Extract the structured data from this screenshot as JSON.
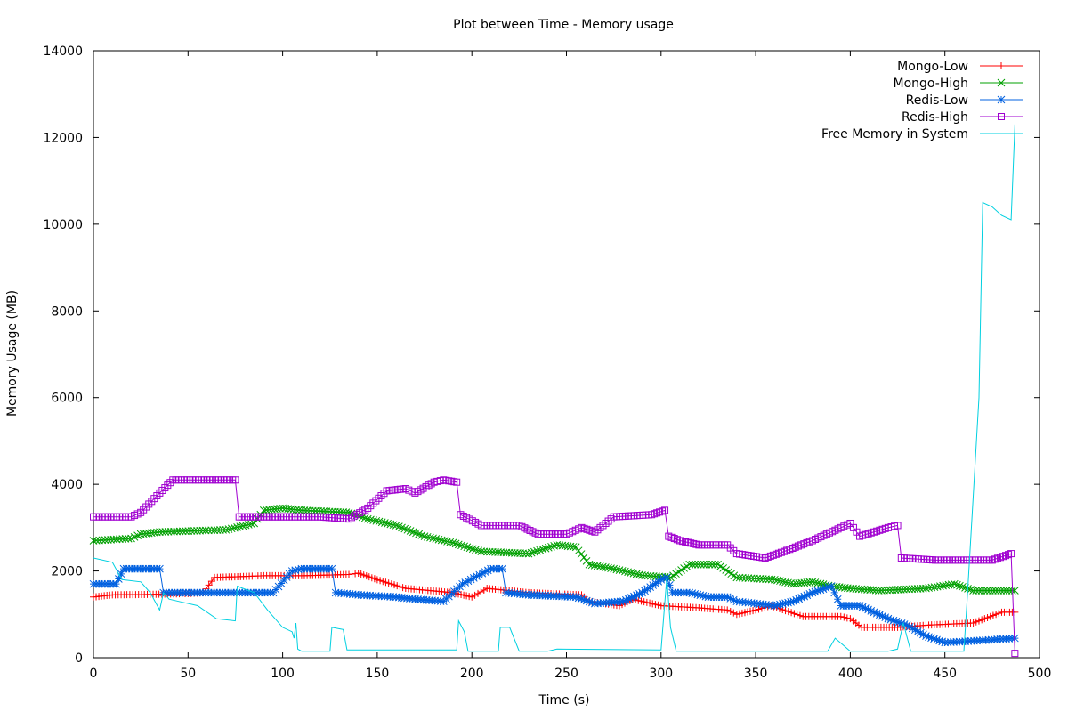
{
  "chart_data": {
    "type": "line",
    "title": "Plot between Time - Memory usage",
    "xlabel": "Time (s)",
    "ylabel": "Memory Usage (MB)",
    "xlim": [
      0,
      500
    ],
    "ylim": [
      0,
      14000
    ],
    "xticks": [
      0,
      50,
      100,
      150,
      200,
      250,
      300,
      350,
      400,
      450,
      500
    ],
    "yticks": [
      0,
      2000,
      4000,
      6000,
      8000,
      10000,
      12000,
      14000
    ],
    "grid": false,
    "legend_position": "top-right",
    "series": [
      {
        "name": "Mongo-Low",
        "color": "#ff0000",
        "marker": "plus",
        "points": [
          [
            0,
            1400
          ],
          [
            10,
            1450
          ],
          [
            30,
            1460
          ],
          [
            50,
            1480
          ],
          [
            58,
            1500
          ],
          [
            64,
            1850
          ],
          [
            90,
            1890
          ],
          [
            110,
            1890
          ],
          [
            135,
            1920
          ],
          [
            140,
            1950
          ],
          [
            150,
            1800
          ],
          [
            165,
            1600
          ],
          [
            190,
            1500
          ],
          [
            200,
            1400
          ],
          [
            208,
            1600
          ],
          [
            230,
            1500
          ],
          [
            258,
            1450
          ],
          [
            262,
            1300
          ],
          [
            278,
            1200
          ],
          [
            285,
            1350
          ],
          [
            300,
            1200
          ],
          [
            320,
            1150
          ],
          [
            335,
            1100
          ],
          [
            340,
            1000
          ],
          [
            350,
            1100
          ],
          [
            358,
            1200
          ],
          [
            375,
            950
          ],
          [
            395,
            950
          ],
          [
            400,
            900
          ],
          [
            406,
            700
          ],
          [
            425,
            700
          ],
          [
            440,
            750
          ],
          [
            465,
            800
          ],
          [
            480,
            1050
          ],
          [
            487,
            1050
          ]
        ]
      },
      {
        "name": "Mongo-High",
        "color": "#00a000",
        "marker": "cross",
        "points": [
          [
            0,
            2700
          ],
          [
            20,
            2750
          ],
          [
            25,
            2850
          ],
          [
            35,
            2900
          ],
          [
            70,
            2950
          ],
          [
            85,
            3100
          ],
          [
            90,
            3400
          ],
          [
            100,
            3450
          ],
          [
            110,
            3400
          ],
          [
            135,
            3350
          ],
          [
            145,
            3200
          ],
          [
            160,
            3050
          ],
          [
            175,
            2800
          ],
          [
            190,
            2650
          ],
          [
            205,
            2450
          ],
          [
            230,
            2400
          ],
          [
            245,
            2600
          ],
          [
            255,
            2550
          ],
          [
            262,
            2150
          ],
          [
            275,
            2050
          ],
          [
            290,
            1900
          ],
          [
            305,
            1850
          ],
          [
            315,
            2150
          ],
          [
            330,
            2150
          ],
          [
            340,
            1850
          ],
          [
            360,
            1800
          ],
          [
            370,
            1700
          ],
          [
            380,
            1750
          ],
          [
            390,
            1650
          ],
          [
            400,
            1600
          ],
          [
            415,
            1550
          ],
          [
            440,
            1600
          ],
          [
            455,
            1700
          ],
          [
            465,
            1550
          ],
          [
            487,
            1550
          ]
        ]
      },
      {
        "name": "Redis-Low",
        "color": "#0060e0",
        "marker": "star",
        "points": [
          [
            0,
            1700
          ],
          [
            12,
            1700
          ],
          [
            16,
            2050
          ],
          [
            35,
            2050
          ],
          [
            37,
            1500
          ],
          [
            95,
            1500
          ],
          [
            105,
            2000
          ],
          [
            110,
            2050
          ],
          [
            126,
            2050
          ],
          [
            128,
            1500
          ],
          [
            140,
            1450
          ],
          [
            160,
            1400
          ],
          [
            170,
            1350
          ],
          [
            185,
            1300
          ],
          [
            195,
            1700
          ],
          [
            210,
            2050
          ],
          [
            216,
            2050
          ],
          [
            218,
            1500
          ],
          [
            230,
            1450
          ],
          [
            255,
            1400
          ],
          [
            265,
            1250
          ],
          [
            280,
            1300
          ],
          [
            290,
            1500
          ],
          [
            300,
            1800
          ],
          [
            303,
            1850
          ],
          [
            306,
            1500
          ],
          [
            315,
            1500
          ],
          [
            325,
            1400
          ],
          [
            335,
            1400
          ],
          [
            340,
            1300
          ],
          [
            360,
            1200
          ],
          [
            370,
            1300
          ],
          [
            380,
            1500
          ],
          [
            390,
            1650
          ],
          [
            395,
            1200
          ],
          [
            405,
            1200
          ],
          [
            420,
            900
          ],
          [
            430,
            750
          ],
          [
            440,
            500
          ],
          [
            450,
            350
          ],
          [
            470,
            400
          ],
          [
            487,
            450
          ]
        ]
      },
      {
        "name": "Redis-High",
        "color": "#a000d0",
        "marker": "square",
        "points": [
          [
            0,
            3250
          ],
          [
            20,
            3250
          ],
          [
            25,
            3350
          ],
          [
            35,
            3800
          ],
          [
            42,
            4100
          ],
          [
            75,
            4100
          ],
          [
            77,
            3250
          ],
          [
            90,
            3250
          ],
          [
            120,
            3250
          ],
          [
            135,
            3200
          ],
          [
            145,
            3450
          ],
          [
            155,
            3850
          ],
          [
            165,
            3900
          ],
          [
            170,
            3800
          ],
          [
            180,
            4050
          ],
          [
            185,
            4100
          ],
          [
            192,
            4050
          ],
          [
            194,
            3300
          ],
          [
            205,
            3050
          ],
          [
            225,
            3050
          ],
          [
            235,
            2850
          ],
          [
            250,
            2850
          ],
          [
            258,
            3000
          ],
          [
            265,
            2900
          ],
          [
            275,
            3250
          ],
          [
            295,
            3300
          ],
          [
            302,
            3400
          ],
          [
            304,
            2800
          ],
          [
            310,
            2700
          ],
          [
            320,
            2600
          ],
          [
            335,
            2600
          ],
          [
            340,
            2400
          ],
          [
            355,
            2300
          ],
          [
            365,
            2450
          ],
          [
            380,
            2700
          ],
          [
            395,
            3000
          ],
          [
            400,
            3100
          ],
          [
            405,
            2800
          ],
          [
            420,
            3000
          ],
          [
            425,
            3050
          ],
          [
            427,
            2300
          ],
          [
            445,
            2250
          ],
          [
            475,
            2250
          ],
          [
            485,
            2400
          ],
          [
            487,
            100
          ]
        ]
      },
      {
        "name": "Free Memory in System",
        "color": "#00d0e0",
        "marker": "none",
        "points": [
          [
            0,
            2300
          ],
          [
            10,
            2200
          ],
          [
            15,
            1800
          ],
          [
            25,
            1750
          ],
          [
            30,
            1500
          ],
          [
            35,
            1100
          ],
          [
            37,
            1500
          ],
          [
            40,
            1350
          ],
          [
            45,
            1300
          ],
          [
            55,
            1200
          ],
          [
            65,
            900
          ],
          [
            75,
            850
          ],
          [
            76,
            1650
          ],
          [
            85,
            1500
          ],
          [
            92,
            1100
          ],
          [
            100,
            700
          ],
          [
            105,
            600
          ],
          [
            106,
            450
          ],
          [
            107,
            800
          ],
          [
            108,
            200
          ],
          [
            110,
            150
          ],
          [
            125,
            150
          ],
          [
            126,
            700
          ],
          [
            132,
            650
          ],
          [
            134,
            180
          ],
          [
            170,
            180
          ],
          [
            192,
            180
          ],
          [
            193,
            850
          ],
          [
            196,
            600
          ],
          [
            198,
            150
          ],
          [
            214,
            150
          ],
          [
            215,
            700
          ],
          [
            220,
            700
          ],
          [
            225,
            150
          ],
          [
            240,
            150
          ],
          [
            245,
            200
          ],
          [
            300,
            180
          ],
          [
            303,
            1850
          ],
          [
            305,
            700
          ],
          [
            308,
            150
          ],
          [
            340,
            150
          ],
          [
            388,
            150
          ],
          [
            392,
            450
          ],
          [
            396,
            300
          ],
          [
            400,
            150
          ],
          [
            420,
            150
          ],
          [
            425,
            200
          ],
          [
            428,
            800
          ],
          [
            432,
            150
          ],
          [
            460,
            150
          ],
          [
            462,
            1500
          ],
          [
            468,
            6000
          ],
          [
            470,
            10500
          ],
          [
            475,
            10400
          ],
          [
            480,
            10200
          ],
          [
            485,
            10100
          ],
          [
            487,
            12300
          ]
        ]
      }
    ]
  }
}
